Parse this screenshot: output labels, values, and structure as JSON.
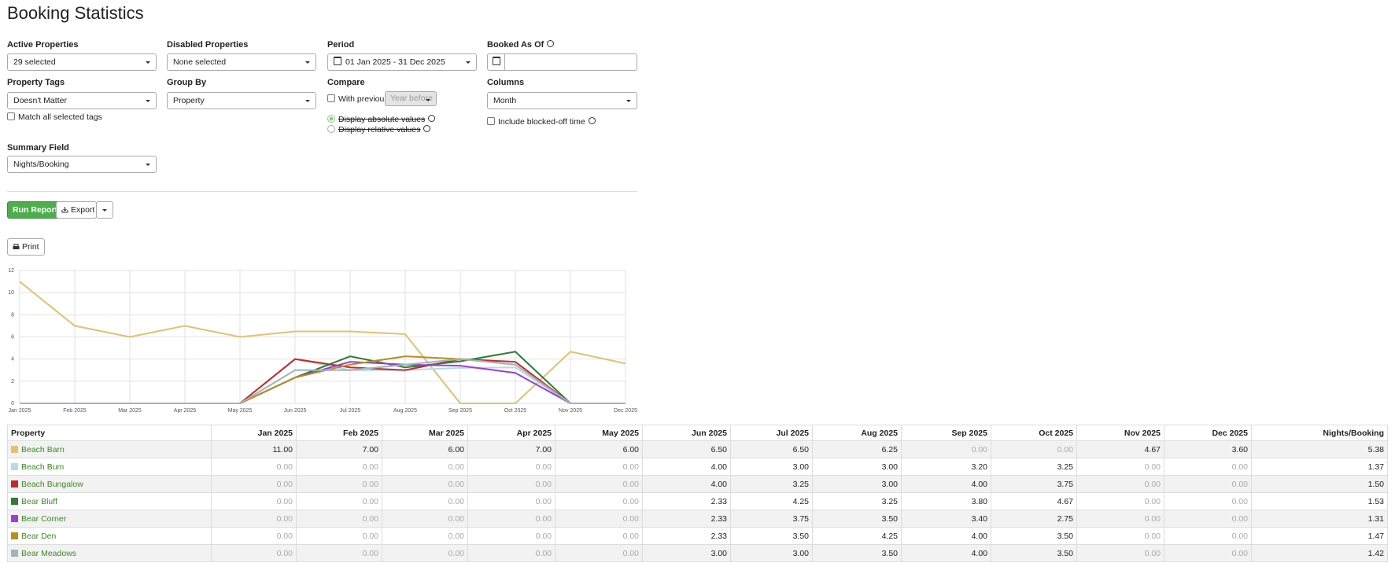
{
  "header": {
    "title": "Booking Statistics"
  },
  "filters": {
    "active_properties": {
      "label": "Active Properties",
      "value": "29 selected"
    },
    "disabled_properties": {
      "label": "Disabled Properties",
      "value": "None selected"
    },
    "period": {
      "label": "Period",
      "value": "01 Jan 2025 - 31 Dec 2025"
    },
    "booked_as_of": {
      "label": "Booked As Of"
    },
    "property_tags": {
      "label": "Property Tags",
      "value": "Doesn't Matter",
      "option": "Match all selected tags"
    },
    "group_by": {
      "label": "Group By",
      "value": "Property"
    },
    "compare": {
      "label": "Compare",
      "option": "With previous",
      "value": "Year before",
      "radios": [
        "Display absolute values",
        "Display relative values"
      ]
    },
    "columns": {
      "label": "Columns",
      "value": "Month",
      "option": "Include blocked-off time"
    },
    "summary_field": {
      "label": "Summary Field",
      "value": "Nights/Booking"
    }
  },
  "buttons": {
    "run": "Run Report",
    "export": "Export",
    "print": "Print"
  },
  "chart_data": {
    "type": "line",
    "categories": [
      "Jan 2025",
      "Feb 2025",
      "Mar 2025",
      "Apr 2025",
      "May 2025",
      "Jun 2025",
      "Jul 2025",
      "Aug 2025",
      "Sep 2025",
      "Oct 2025",
      "Nov 2025",
      "Dec 2025"
    ],
    "ylim": [
      0,
      12
    ],
    "yticks": [
      0,
      2,
      4,
      6,
      8,
      10,
      12
    ],
    "grid": true,
    "series": [
      {
        "name": "Beach Barn",
        "color": "#e3c16f",
        "values": [
          11,
          7,
          6,
          7,
          6,
          6.5,
          6.5,
          6.25,
          0,
          0,
          4.67,
          3.6
        ]
      },
      {
        "name": "Beach Bum",
        "color": "#b7dbe3",
        "values": [
          0,
          0,
          0,
          0,
          0,
          4,
          3,
          3,
          3.2,
          3.25,
          0,
          0
        ]
      },
      {
        "name": "Beach Bungalow",
        "color": "#c62828",
        "values": [
          0,
          0,
          0,
          0,
          0,
          4,
          3.25,
          3,
          4,
          3.75,
          0,
          0
        ]
      },
      {
        "name": "Bear Bluff",
        "color": "#2e7d32",
        "values": [
          0,
          0,
          0,
          0,
          0,
          2.33,
          4.25,
          3.25,
          3.8,
          4.67,
          0,
          0
        ]
      },
      {
        "name": "Bear Corner",
        "color": "#9b3fd9",
        "values": [
          0,
          0,
          0,
          0,
          0,
          2.33,
          3.75,
          3.5,
          3.4,
          2.75,
          0,
          0
        ]
      },
      {
        "name": "Bear Den",
        "color": "#b8901e",
        "values": [
          0,
          0,
          0,
          0,
          0,
          2.33,
          3.5,
          4.25,
          4,
          3.5,
          0,
          0
        ]
      },
      {
        "name": "Bear Meadows",
        "color": "#9fb4bd",
        "values": [
          0,
          0,
          0,
          0,
          0,
          3,
          3,
          3.5,
          4,
          3.5,
          0,
          0
        ]
      }
    ]
  },
  "table": {
    "columns": [
      "Property",
      "Jan 2025",
      "Feb 2025",
      "Mar 2025",
      "Apr 2025",
      "May 2025",
      "Jun 2025",
      "Jul 2025",
      "Aug 2025",
      "Sep 2025",
      "Oct 2025",
      "Nov 2025",
      "Dec 2025",
      "Nights/Booking"
    ],
    "rows": [
      [
        "Beach Barn",
        "11.00",
        "7.00",
        "6.00",
        "7.00",
        "6.00",
        "6.50",
        "6.50",
        "6.25",
        "0.00",
        "0.00",
        "4.67",
        "3.60",
        "5.38"
      ],
      [
        "Beach Bum",
        "0.00",
        "0.00",
        "0.00",
        "0.00",
        "0.00",
        "4.00",
        "3.00",
        "3.00",
        "3.20",
        "3.25",
        "0.00",
        "0.00",
        "1.37"
      ],
      [
        "Beach Bungalow",
        "0.00",
        "0.00",
        "0.00",
        "0.00",
        "0.00",
        "4.00",
        "3.25",
        "3.00",
        "4.00",
        "3.75",
        "0.00",
        "0.00",
        "1.50"
      ],
      [
        "Bear Bluff",
        "0.00",
        "0.00",
        "0.00",
        "0.00",
        "0.00",
        "2.33",
        "4.25",
        "3.25",
        "3.80",
        "4.67",
        "0.00",
        "0.00",
        "1.53"
      ],
      [
        "Bear Corner",
        "0.00",
        "0.00",
        "0.00",
        "0.00",
        "0.00",
        "2.33",
        "3.75",
        "3.50",
        "3.40",
        "2.75",
        "0.00",
        "0.00",
        "1.31"
      ],
      [
        "Bear Den",
        "0.00",
        "0.00",
        "0.00",
        "0.00",
        "0.00",
        "2.33",
        "3.50",
        "4.25",
        "4.00",
        "3.50",
        "0.00",
        "0.00",
        "1.47"
      ],
      [
        "Bear Meadows",
        "0.00",
        "0.00",
        "0.00",
        "0.00",
        "0.00",
        "3.00",
        "3.00",
        "3.50",
        "4.00",
        "3.50",
        "0.00",
        "0.00",
        "1.42"
      ]
    ]
  }
}
